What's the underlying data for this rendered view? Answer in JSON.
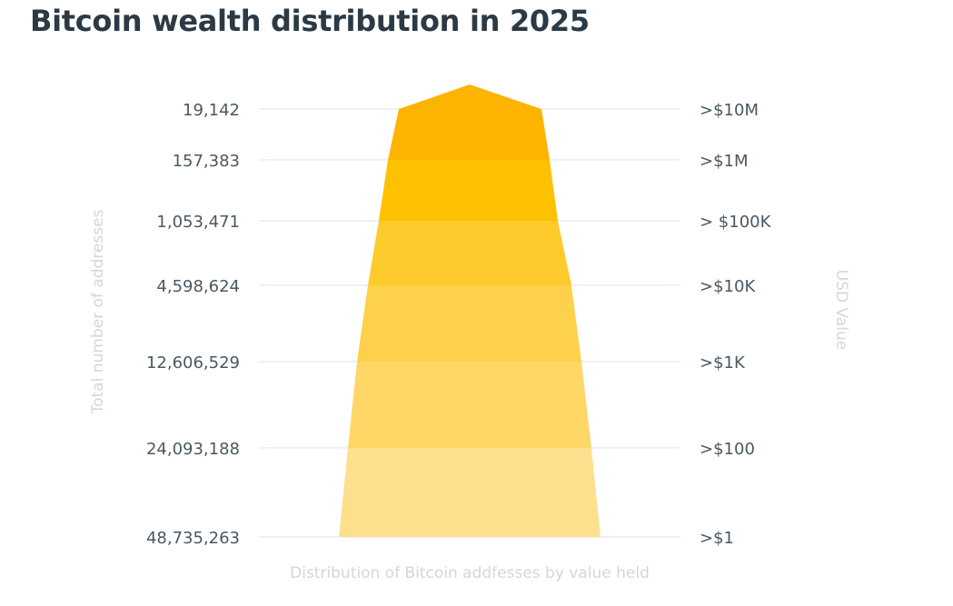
{
  "title": "Bitcoin wealth distribution in 2025",
  "chart_data": {
    "type": "pyramid",
    "title": "Bitcoin wealth distribution in 2025",
    "xlabel": "Distribution of Bitcoin addfesses by value held",
    "ylabel_left": "Total number of addresses",
    "ylabel_right": "USD Value",
    "tiers": [
      {
        "addresses": "19,142",
        "value_label": ">$10M",
        "color": "#FDB400"
      },
      {
        "addresses": "157,383",
        "value_label": ">$1M",
        "color": "#FEC100"
      },
      {
        "addresses": "1,053,471",
        "value_label": "> $100K",
        "color": "#FECA2C"
      },
      {
        "addresses": "4,598,624",
        "value_label": ">$10K",
        "color": "#FED14A"
      },
      {
        "addresses": "12,606,529",
        "value_label": ">$1K",
        "color": "#FED767"
      },
      {
        "addresses": "24,093,188",
        "value_label": ">$100",
        "color": "#FEDF8E"
      }
    ],
    "base": {
      "addresses": "48,735,263",
      "value_label": ">$1"
    },
    "grid": true
  }
}
